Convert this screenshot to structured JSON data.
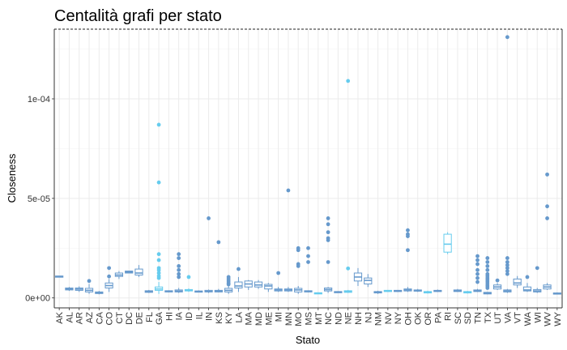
{
  "chart_data": {
    "type": "boxplot",
    "title": "Centalità grafi per stato",
    "xlabel": "Stato",
    "ylabel": "Closeness",
    "ylim": [
      -5e-06,
      0.000135
    ],
    "yticks": [
      0,
      5e-05,
      0.0001
    ],
    "ytick_labels": [
      "0e+00",
      "5e-05",
      "1e-04"
    ],
    "grid": true,
    "legend": "none",
    "colors": {
      "box": "#6699cc",
      "box_alt": "#66ccee",
      "grid_major": "#ebebeb",
      "grid_minor": "#f5f5f5",
      "panel_border": "#333333"
    },
    "categories": [
      "AK",
      "AL",
      "AR",
      "AZ",
      "CA",
      "CO",
      "CT",
      "DC",
      "DE",
      "FL",
      "GA",
      "HI",
      "IA",
      "ID",
      "IL",
      "IN",
      "KS",
      "KY",
      "LA",
      "MA",
      "MD",
      "ME",
      "MI",
      "MN",
      "MO",
      "MS",
      "MT",
      "NC",
      "ND",
      "NE",
      "NH",
      "NJ",
      "NM",
      "NV",
      "NY",
      "OH",
      "OK",
      "OR",
      "PA",
      "RI",
      "SC",
      "SD",
      "TN",
      "TX",
      "UT",
      "VA",
      "VT",
      "WA",
      "WI",
      "WV",
      "WY"
    ],
    "boxes": [
      {
        "q1": 1.05e-05,
        "med": 1.08e-05,
        "q3": 1.1e-05,
        "lo": 1.05e-05,
        "hi": 1.1e-05,
        "out": []
      },
      {
        "q1": 4e-06,
        "med": 4.5e-06,
        "q3": 5e-06,
        "lo": 3.5e-06,
        "hi": 5.5e-06,
        "out": []
      },
      {
        "q1": 3.8e-06,
        "med": 4.4e-06,
        "q3": 5e-06,
        "lo": 3e-06,
        "hi": 5.8e-06,
        "out": []
      },
      {
        "q1": 3e-06,
        "med": 3.8e-06,
        "q3": 4.8e-06,
        "lo": 2e-06,
        "hi": 7e-06,
        "out": [
          8.5e-06
        ]
      },
      {
        "q1": 2.2e-06,
        "med": 2.6e-06,
        "q3": 3e-06,
        "lo": 1.8e-06,
        "hi": 3.5e-06,
        "out": []
      },
      {
        "q1": 5e-06,
        "med": 6.2e-06,
        "q3": 7.5e-06,
        "lo": 3e-06,
        "hi": 9.5e-06,
        "out": [
          1.08e-05,
          1.5e-05
        ]
      },
      {
        "q1": 1.08e-05,
        "med": 1.15e-05,
        "q3": 1.25e-05,
        "lo": 9.5e-06,
        "hi": 1.35e-05,
        "out": []
      },
      {
        "q1": 1.25e-05,
        "med": 1.3e-05,
        "q3": 1.35e-05,
        "lo": 1.25e-05,
        "hi": 1.35e-05,
        "out": []
      },
      {
        "q1": 1.15e-05,
        "med": 1.25e-05,
        "q3": 1.45e-05,
        "lo": 1.05e-05,
        "hi": 1.65e-05,
        "out": []
      },
      {
        "q1": 2.8e-06,
        "med": 3.2e-06,
        "q3": 3.6e-06,
        "lo": 2.5e-06,
        "hi": 4e-06,
        "out": []
      },
      {
        "q1": 3.8e-06,
        "med": 4.5e-06,
        "q3": 5.5e-06,
        "lo": 2e-06,
        "hi": 8e-06,
        "out": [
          8.7e-05,
          5.8e-05,
          2.2e-05,
          1.9e-05,
          1.5e-05,
          1.4e-05,
          1.25e-05,
          1.1e-05,
          1e-05
        ]
      },
      {
        "q1": 3e-06,
        "med": 3.3e-06,
        "q3": 3.6e-06,
        "lo": 2.8e-06,
        "hi": 3.8e-06,
        "out": []
      },
      {
        "q1": 3e-06,
        "med": 3.4e-06,
        "q3": 4e-06,
        "lo": 2.5e-06,
        "hi": 5e-06,
        "out": [
          2.2e-05,
          2e-05,
          1.6e-05,
          1.4e-05,
          1.2e-05,
          1.05e-05
        ]
      },
      {
        "q1": 3.5e-06,
        "med": 3.8e-06,
        "q3": 4.2e-06,
        "lo": 3e-06,
        "hi": 4.8e-06,
        "out": [
          1.05e-05
        ]
      },
      {
        "q1": 3e-06,
        "med": 3.2e-06,
        "q3": 3.5e-06,
        "lo": 2.8e-06,
        "hi": 3.8e-06,
        "out": []
      },
      {
        "q1": 3e-06,
        "med": 3.3e-06,
        "q3": 3.8e-06,
        "lo": 2.5e-06,
        "hi": 4.2e-06,
        "out": [
          4e-05
        ]
      },
      {
        "q1": 3e-06,
        "med": 3.4e-06,
        "q3": 3.8e-06,
        "lo": 2.8e-06,
        "hi": 4.5e-06,
        "out": [
          2.8e-05
        ]
      },
      {
        "q1": 3e-06,
        "med": 3.8e-06,
        "q3": 4.8e-06,
        "lo": 2e-06,
        "hi": 6e-06,
        "out": [
          1.05e-05,
          9.5e-06,
          8.5e-06,
          7.5e-06,
          6.8e-06
        ]
      },
      {
        "q1": 5e-06,
        "med": 6e-06,
        "q3": 8e-06,
        "lo": 3e-06,
        "hi": 1.05e-05,
        "out": [
          1.45e-05
        ]
      },
      {
        "q1": 5.5e-06,
        "med": 7e-06,
        "q3": 8.5e-06,
        "lo": 4e-06,
        "hi": 9e-06,
        "out": []
      },
      {
        "q1": 5.5e-06,
        "med": 6.5e-06,
        "q3": 8e-06,
        "lo": 4.5e-06,
        "hi": 9e-06,
        "out": []
      },
      {
        "q1": 4.5e-06,
        "med": 6e-06,
        "q3": 6.8e-06,
        "lo": 3e-06,
        "hi": 7.5e-06,
        "out": []
      },
      {
        "q1": 3.5e-06,
        "med": 4e-06,
        "q3": 4.5e-06,
        "lo": 3e-06,
        "hi": 5.5e-06,
        "out": [
          1.25e-05
        ]
      },
      {
        "q1": 3.5e-06,
        "med": 4e-06,
        "q3": 4.5e-06,
        "lo": 3e-06,
        "hi": 5.5e-06,
        "out": [
          5.4e-05
        ]
      },
      {
        "q1": 3e-06,
        "med": 4e-06,
        "q3": 4.8e-06,
        "lo": 2e-06,
        "hi": 6e-06,
        "out": [
          2.5e-05,
          2.4e-05,
          1.7e-05,
          1.6e-05
        ]
      },
      {
        "q1": 3e-06,
        "med": 3.3e-06,
        "q3": 3.6e-06,
        "lo": 2.8e-06,
        "hi": 3.8e-06,
        "out": [
          2.5e-05,
          2.1e-05,
          1.8e-05
        ]
      },
      {
        "q1": 2.2e-06,
        "med": 2.4e-06,
        "q3": 2.6e-06,
        "lo": 2e-06,
        "hi": 2.8e-06,
        "out": []
      },
      {
        "q1": 3.5e-06,
        "med": 4.2e-06,
        "q3": 5e-06,
        "lo": 2.5e-06,
        "hi": 5.5e-06,
        "out": [
          4e-05,
          3.7e-05,
          3.3e-05,
          3e-05,
          2.9e-05,
          1.8e-05
        ]
      },
      {
        "q1": 2.8e-06,
        "med": 3e-06,
        "q3": 3.2e-06,
        "lo": 2.6e-06,
        "hi": 3.4e-06,
        "out": []
      },
      {
        "q1": 2.8e-06,
        "med": 3.2e-06,
        "q3": 3.6e-06,
        "lo": 2.5e-06,
        "hi": 4e-06,
        "out": [
          0.000109,
          1.48e-05
        ]
      },
      {
        "q1": 8.5e-06,
        "med": 1.05e-05,
        "q3": 1.25e-05,
        "lo": 6e-06,
        "hi": 1.5e-05,
        "out": []
      },
      {
        "q1": 7e-06,
        "med": 8.8e-06,
        "q3": 1e-05,
        "lo": 5.5e-06,
        "hi": 1.2e-05,
        "out": []
      },
      {
        "q1": 2.5e-06,
        "med": 2.8e-06,
        "q3": 3.2e-06,
        "lo": 2e-06,
        "hi": 3.6e-06,
        "out": []
      },
      {
        "q1": 3.2e-06,
        "med": 3.5e-06,
        "q3": 3.8e-06,
        "lo": 3e-06,
        "hi": 4e-06,
        "out": []
      },
      {
        "q1": 3.2e-06,
        "med": 3.5e-06,
        "q3": 3.8e-06,
        "lo": 3e-06,
        "hi": 4e-06,
        "out": []
      },
      {
        "q1": 3.5e-06,
        "med": 4e-06,
        "q3": 4.5e-06,
        "lo": 3e-06,
        "hi": 5.5e-06,
        "out": [
          3.4e-05,
          3.2e-05,
          3.1e-05,
          2.4e-05
        ]
      },
      {
        "q1": 3.5e-06,
        "med": 3.8e-06,
        "q3": 4e-06,
        "lo": 3e-06,
        "hi": 4.5e-06,
        "out": []
      },
      {
        "q1": 2.5e-06,
        "med": 2.8e-06,
        "q3": 3.2e-06,
        "lo": 2.2e-06,
        "hi": 3.6e-06,
        "out": []
      },
      {
        "q1": 3.2e-06,
        "med": 3.5e-06,
        "q3": 3.8e-06,
        "lo": 3e-06,
        "hi": 4.2e-06,
        "out": []
      },
      {
        "q1": 2.3e-05,
        "med": 2.7e-05,
        "q3": 3.2e-05,
        "lo": 2.2e-05,
        "hi": 3.3e-05,
        "out": []
      },
      {
        "q1": 3.2e-06,
        "med": 3.6e-06,
        "q3": 4e-06,
        "lo": 3e-06,
        "hi": 4.5e-06,
        "out": []
      },
      {
        "q1": 2.5e-06,
        "med": 2.8e-06,
        "q3": 3.2e-06,
        "lo": 2.2e-06,
        "hi": 3.5e-06,
        "out": []
      },
      {
        "q1": 3.2e-06,
        "med": 3.6e-06,
        "q3": 4e-06,
        "lo": 3e-06,
        "hi": 4.5e-06,
        "out": [
          2.1e-05,
          1.9e-05,
          1.7e-05,
          1.4e-05,
          1.2e-05,
          1e-05,
          8e-06
        ]
      },
      {
        "q1": 2e-06,
        "med": 2.4e-06,
        "q3": 2.8e-06,
        "lo": 1.8e-06,
        "hi": 3e-06,
        "out": [
          2e-05,
          1.8e-05,
          1.6e-05,
          1.4e-05,
          1.2e-05,
          1.1e-05,
          1e-05,
          9e-06,
          8e-06,
          7e-06,
          6e-06,
          5e-06
        ]
      },
      {
        "q1": 4.5e-06,
        "med": 5.5e-06,
        "q3": 6.5e-06,
        "lo": 4e-06,
        "hi": 7.5e-06,
        "out": [
          8.8e-06
        ]
      },
      {
        "q1": 3e-06,
        "med": 3.5e-06,
        "q3": 4e-06,
        "lo": 2.5e-06,
        "hi": 4.5e-06,
        "out": [
          0.000131,
          2e-05,
          1.8e-05,
          1.65e-05,
          1.5e-05,
          1.35e-05,
          1.2e-05
        ]
      },
      {
        "q1": 6.5e-06,
        "med": 7.5e-06,
        "q3": 9.5e-06,
        "lo": 5e-06,
        "hi": 1.1e-05,
        "out": []
      },
      {
        "q1": 3.5e-06,
        "med": 4e-06,
        "q3": 5.5e-06,
        "lo": 3e-06,
        "hi": 7.5e-06,
        "out": [
          1.05e-05
        ]
      },
      {
        "q1": 3e-06,
        "med": 3.5e-06,
        "q3": 4.2e-06,
        "lo": 2.5e-06,
        "hi": 5e-06,
        "out": [
          1.5e-05
        ]
      },
      {
        "q1": 4.5e-06,
        "med": 5.5e-06,
        "q3": 6.5e-06,
        "lo": 4e-06,
        "hi": 7.5e-06,
        "out": [
          6.2e-05,
          4.6e-05,
          4e-05
        ]
      },
      {
        "q1": 2e-06,
        "med": 2.2e-06,
        "q3": 2.5e-06,
        "lo": 1.8e-06,
        "hi": 2.8e-06,
        "out": []
      }
    ],
    "alt_color_indices": [
      10,
      13,
      26,
      29,
      33,
      37,
      39,
      41
    ]
  }
}
